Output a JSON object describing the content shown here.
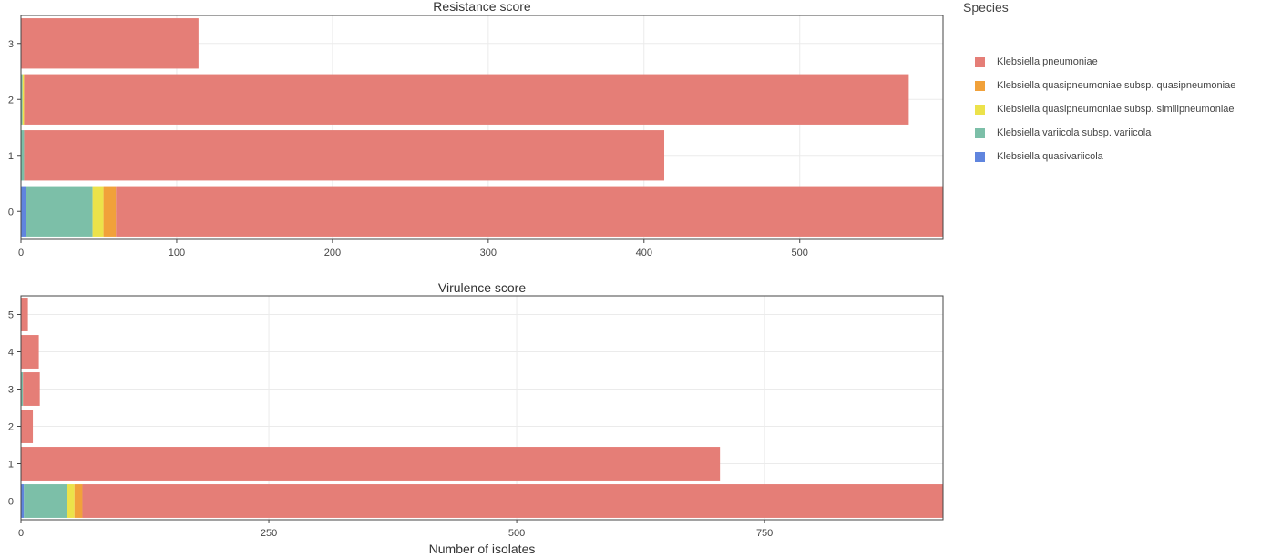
{
  "legend": {
    "title": "Species",
    "items": [
      {
        "label": "Klebsiella pneumoniae",
        "color": "#e57e77"
      },
      {
        "label": "Klebsiella quasipneumoniae subsp. quasipneumoniae",
        "color": "#f1a13a"
      },
      {
        "label": "Klebsiella quasipneumoniae subsp. similipneumoniae",
        "color": "#ece24a"
      },
      {
        "label": "Klebsiella variicola subsp. variicola",
        "color": "#7cbfa8"
      },
      {
        "label": "Klebsiella quasivariicola",
        "color": "#6085de"
      }
    ]
  },
  "xaxis_title": "Number of isolates",
  "chart_data": [
    {
      "type": "bar",
      "orientation": "horizontal",
      "stacked": true,
      "title": "Resistance score",
      "xlabel": "",
      "ylabel": "",
      "categories": [
        "0",
        "1",
        "2",
        "3"
      ],
      "xlim": [
        0,
        592
      ],
      "xticks": [
        0,
        100,
        200,
        300,
        400,
        500
      ],
      "grid": true,
      "series": [
        {
          "name": "Klebsiella quasivariicola",
          "values": [
            3,
            0,
            0,
            0
          ]
        },
        {
          "name": "Klebsiella variicola subsp. variicola",
          "values": [
            43,
            2,
            1,
            0
          ]
        },
        {
          "name": "Klebsiella quasipneumoniae subsp. similipneumoniae",
          "values": [
            7,
            0,
            1,
            0
          ]
        },
        {
          "name": "Klebsiella quasipneumoniae subsp. quasipneumoniae",
          "values": [
            8,
            0,
            0,
            0
          ]
        },
        {
          "name": "Klebsiella pneumoniae",
          "values": [
            531,
            411,
            568,
            114
          ]
        }
      ]
    },
    {
      "type": "bar",
      "orientation": "horizontal",
      "stacked": true,
      "title": "Virulence score",
      "xlabel": "Number of isolates",
      "ylabel": "",
      "categories": [
        "0",
        "1",
        "2",
        "3",
        "4",
        "5"
      ],
      "xlim": [
        0,
        930
      ],
      "xticks": [
        0,
        250,
        500,
        750
      ],
      "grid": true,
      "series": [
        {
          "name": "Klebsiella quasivariicola",
          "values": [
            3,
            0,
            0,
            0,
            0,
            0
          ]
        },
        {
          "name": "Klebsiella variicola subsp. variicola",
          "values": [
            43,
            0,
            0,
            2,
            0,
            0
          ]
        },
        {
          "name": "Klebsiella quasipneumoniae subsp. similipneumoniae",
          "values": [
            8,
            0,
            0,
            0,
            0,
            0
          ]
        },
        {
          "name": "Klebsiella quasipneumoniae subsp. quasipneumoniae",
          "values": [
            8,
            0,
            0,
            0,
            0,
            0
          ]
        },
        {
          "name": "Klebsiella pneumoniae",
          "values": [
            868,
            705,
            12,
            17,
            18,
            7
          ]
        }
      ]
    }
  ]
}
